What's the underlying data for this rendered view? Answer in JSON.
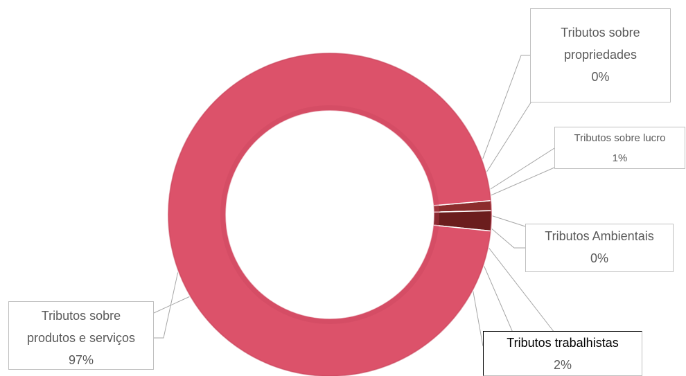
{
  "chart_data": {
    "type": "doughnut",
    "categories": [
      "Tributos sobre propriedades",
      "Tributos sobre lucro",
      "Tributos Ambientais",
      "Tributos trabalhistas",
      "Tributos sobre produtos e serviços"
    ],
    "values": [
      0,
      1,
      0,
      2,
      97
    ],
    "value_labels": [
      "0%",
      "1%",
      "0%",
      "2%",
      "97%"
    ],
    "colors": [
      "#7a2323",
      "#8b2d2d",
      "#6e1f1f",
      "#6b1d1d",
      "#dc526a"
    ]
  }
}
